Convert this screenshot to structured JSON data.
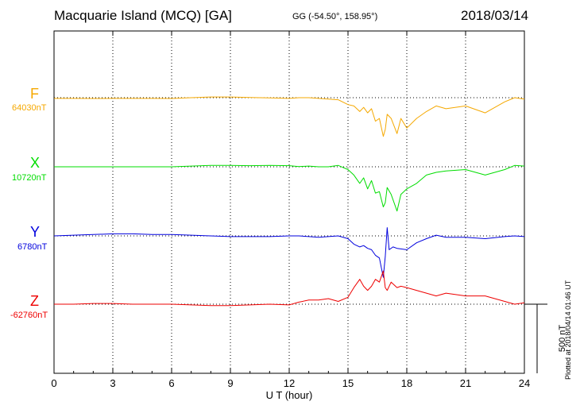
{
  "header": {
    "title": "Macquarie Island (MCQ)  [GA]",
    "coords": "GG (-54.50°, 158.95°)",
    "date": "2018/03/14"
  },
  "footer": {
    "plotted": "Plotted at 2018/04/14 01:46 UT"
  },
  "scale_bar": {
    "label": "500 nT",
    "value_nT": 500
  },
  "chart_data": {
    "type": "line",
    "title": "Macquarie Island (MCQ)  [GA]",
    "xlabel": "U T (hour)",
    "ylabel": "",
    "xlim": [
      0,
      24
    ],
    "xticks": [
      0,
      3,
      6,
      9,
      12,
      15,
      18,
      21,
      24
    ],
    "grid": "dotted vertical lines at every 3 hours; dotted baseline per trace",
    "offset_units": "nT",
    "series": [
      {
        "name": "F",
        "baseline_label": "64030nT",
        "baseline_nT": 64030,
        "color": "#f5a800",
        "x": [
          0,
          1,
          2,
          3,
          4,
          5,
          6,
          7,
          8,
          9,
          10,
          11,
          12,
          12.5,
          13,
          13.5,
          14,
          14.5,
          15,
          15.3,
          15.6,
          15.8,
          16,
          16.2,
          16.4,
          16.6,
          16.8,
          16.9,
          17,
          17.2,
          17.5,
          17.7,
          18,
          18.5,
          19,
          19.5,
          20,
          21,
          22,
          23,
          23.5,
          24
        ],
        "y": [
          -5,
          -5,
          -6,
          -5,
          -5,
          -5,
          -6,
          0,
          5,
          5,
          2,
          -2,
          -5,
          0,
          0,
          -5,
          -10,
          -15,
          -50,
          -60,
          -100,
          -70,
          -110,
          -80,
          -170,
          -150,
          -280,
          -230,
          -120,
          -150,
          -260,
          -150,
          -220,
          -150,
          -100,
          -60,
          -80,
          -60,
          -110,
          -30,
          0,
          -10
        ]
      },
      {
        "name": "X",
        "baseline_label": "10720nT",
        "baseline_nT": 10720,
        "color": "#00dd00",
        "x": [
          0,
          1,
          2,
          3,
          4,
          5,
          6,
          7,
          8,
          9,
          10,
          11,
          12,
          12.5,
          13,
          13.5,
          14,
          14.5,
          15,
          15.3,
          15.6,
          15.8,
          16,
          16.2,
          16.4,
          16.6,
          16.8,
          16.9,
          17,
          17.2,
          17.5,
          17.7,
          18,
          18.5,
          19,
          19.5,
          20,
          21,
          22,
          23,
          23.5,
          24
        ],
        "y": [
          0,
          0,
          0,
          0,
          0,
          0,
          0,
          5,
          10,
          10,
          8,
          10,
          8,
          2,
          5,
          0,
          0,
          10,
          -20,
          -60,
          -120,
          -80,
          -160,
          -100,
          -190,
          -180,
          -290,
          -260,
          -150,
          -200,
          -320,
          -200,
          -160,
          -120,
          -60,
          -40,
          -30,
          -20,
          -60,
          -20,
          10,
          5
        ]
      },
      {
        "name": "Y",
        "baseline_label": "6780nT",
        "baseline_nT": 6780,
        "color": "#0000dd",
        "x": [
          0,
          1,
          2,
          3,
          4,
          5,
          6,
          7,
          8,
          9,
          10,
          11,
          12,
          12.5,
          13,
          13.5,
          14,
          14.5,
          15,
          15.3,
          15.6,
          15.8,
          16,
          16.2,
          16.4,
          16.6,
          16.8,
          16.9,
          17,
          17.1,
          17.3,
          17.5,
          18,
          18.5,
          19,
          19.5,
          20,
          21,
          22,
          23,
          23.5,
          24
        ],
        "y": [
          0,
          5,
          10,
          15,
          15,
          10,
          10,
          5,
          0,
          -5,
          -5,
          -5,
          0,
          0,
          -5,
          -10,
          -5,
          0,
          -20,
          -60,
          -80,
          -70,
          -90,
          -100,
          -140,
          -160,
          -300,
          -150,
          60,
          -100,
          -80,
          -90,
          -100,
          -50,
          -20,
          5,
          -10,
          -10,
          -20,
          -5,
          0,
          -5
        ]
      },
      {
        "name": "Z",
        "baseline_label": "-62760nT",
        "baseline_nT": -62760,
        "color": "#ee0000",
        "x": [
          0,
          1,
          2,
          3,
          4,
          5,
          6,
          7,
          8,
          9,
          10,
          11,
          12,
          12.5,
          13,
          13.5,
          14,
          14.5,
          15,
          15.3,
          15.6,
          15.8,
          16,
          16.2,
          16.4,
          16.6,
          16.8,
          16.9,
          17,
          17.2,
          17.5,
          17.7,
          18,
          18.5,
          19,
          19.5,
          20,
          21,
          22,
          23,
          23.5,
          24
        ],
        "y": [
          0,
          0,
          5,
          5,
          0,
          0,
          0,
          -5,
          -10,
          -10,
          -5,
          0,
          -5,
          15,
          30,
          30,
          40,
          20,
          50,
          120,
          180,
          130,
          100,
          130,
          180,
          160,
          240,
          120,
          100,
          160,
          120,
          130,
          120,
          100,
          80,
          60,
          80,
          60,
          60,
          20,
          0,
          10
        ]
      }
    ]
  }
}
